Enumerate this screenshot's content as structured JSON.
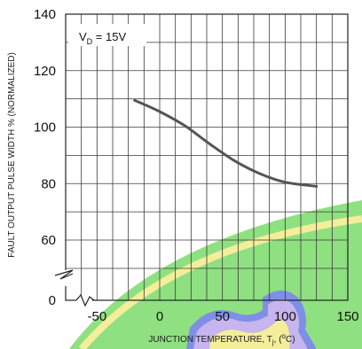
{
  "chart_data": {
    "type": "line",
    "title": "",
    "xlabel": "JUNCTION TEMPERATURE, T",
    "xlabel_sub": "j",
    "xlabel_suffix": ", (",
    "xlabel_unit_sup": "o",
    "xlabel_unit_end": "C)",
    "ylabel": "FAULT OUTPUT PULSE WIDTH % (NORMALIZED)",
    "annotation": {
      "main": "V",
      "sub": "D",
      "tail": " = 15V"
    },
    "xlim": [
      -75,
      150
    ],
    "ylim": [
      40,
      140
    ],
    "x_ticks": [
      "-50",
      "0",
      "50",
      "100",
      "150"
    ],
    "y_ticks": [
      "60",
      "80",
      "100",
      "120",
      "140"
    ],
    "y_origin_label": "0",
    "grid": true,
    "axis_break": true,
    "series": [
      {
        "color": "#555555",
        "x": [
          -20,
          0,
          20,
          40,
          60,
          80,
          100,
          125
        ],
        "y": [
          109.5,
          105.5,
          100.5,
          94,
          88,
          83.5,
          80.5,
          79
        ]
      }
    ],
    "colors": {
      "grid": "#3a3a3a",
      "line": "#555555",
      "overlay_green": "#8fe080",
      "overlay_yellow": "#f4ee9a",
      "overlay_lavender": "#c8b4ee",
      "overlay_blue": "#7f8fe6"
    }
  }
}
